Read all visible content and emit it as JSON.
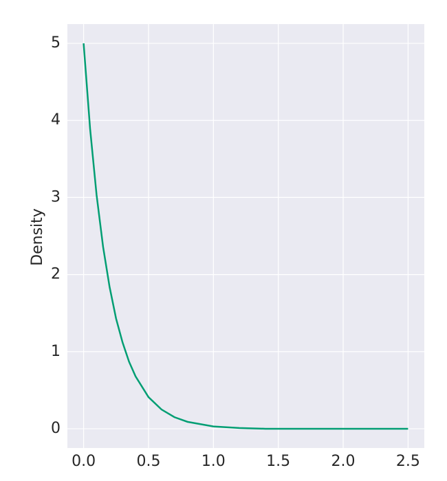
{
  "chart_data": {
    "type": "line",
    "y_label": "Density",
    "x": [
      0,
      0.05,
      0.1,
      0.15,
      0.2,
      0.25,
      0.3,
      0.35,
      0.4,
      0.5,
      0.6,
      0.7,
      0.8,
      0.9,
      1.0,
      1.2,
      1.4,
      1.6,
      1.8,
      2.0,
      2.25,
      2.5
    ],
    "series": [
      {
        "color": "#029e73",
        "values": [
          5,
          3.89,
          3.03,
          2.36,
          1.84,
          1.43,
          1.12,
          0.87,
          0.68,
          0.41,
          0.25,
          0.15,
          0.09,
          0.06,
          0.03,
          0.01,
          0,
          0,
          0,
          0,
          0,
          0
        ]
      }
    ],
    "xlim": [
      -0.125,
      2.625
    ],
    "ylim": [
      -0.25,
      5.25
    ],
    "xticks": [
      {
        "value": 0,
        "label": "0.0"
      },
      0.5,
      {
        "value": 1,
        "label": "1.0"
      },
      1.5,
      {
        "value": 2,
        "label": "2.0"
      },
      2.5
    ],
    "yticks": [
      0,
      1,
      2,
      3,
      4,
      5
    ],
    "grid": true
  }
}
